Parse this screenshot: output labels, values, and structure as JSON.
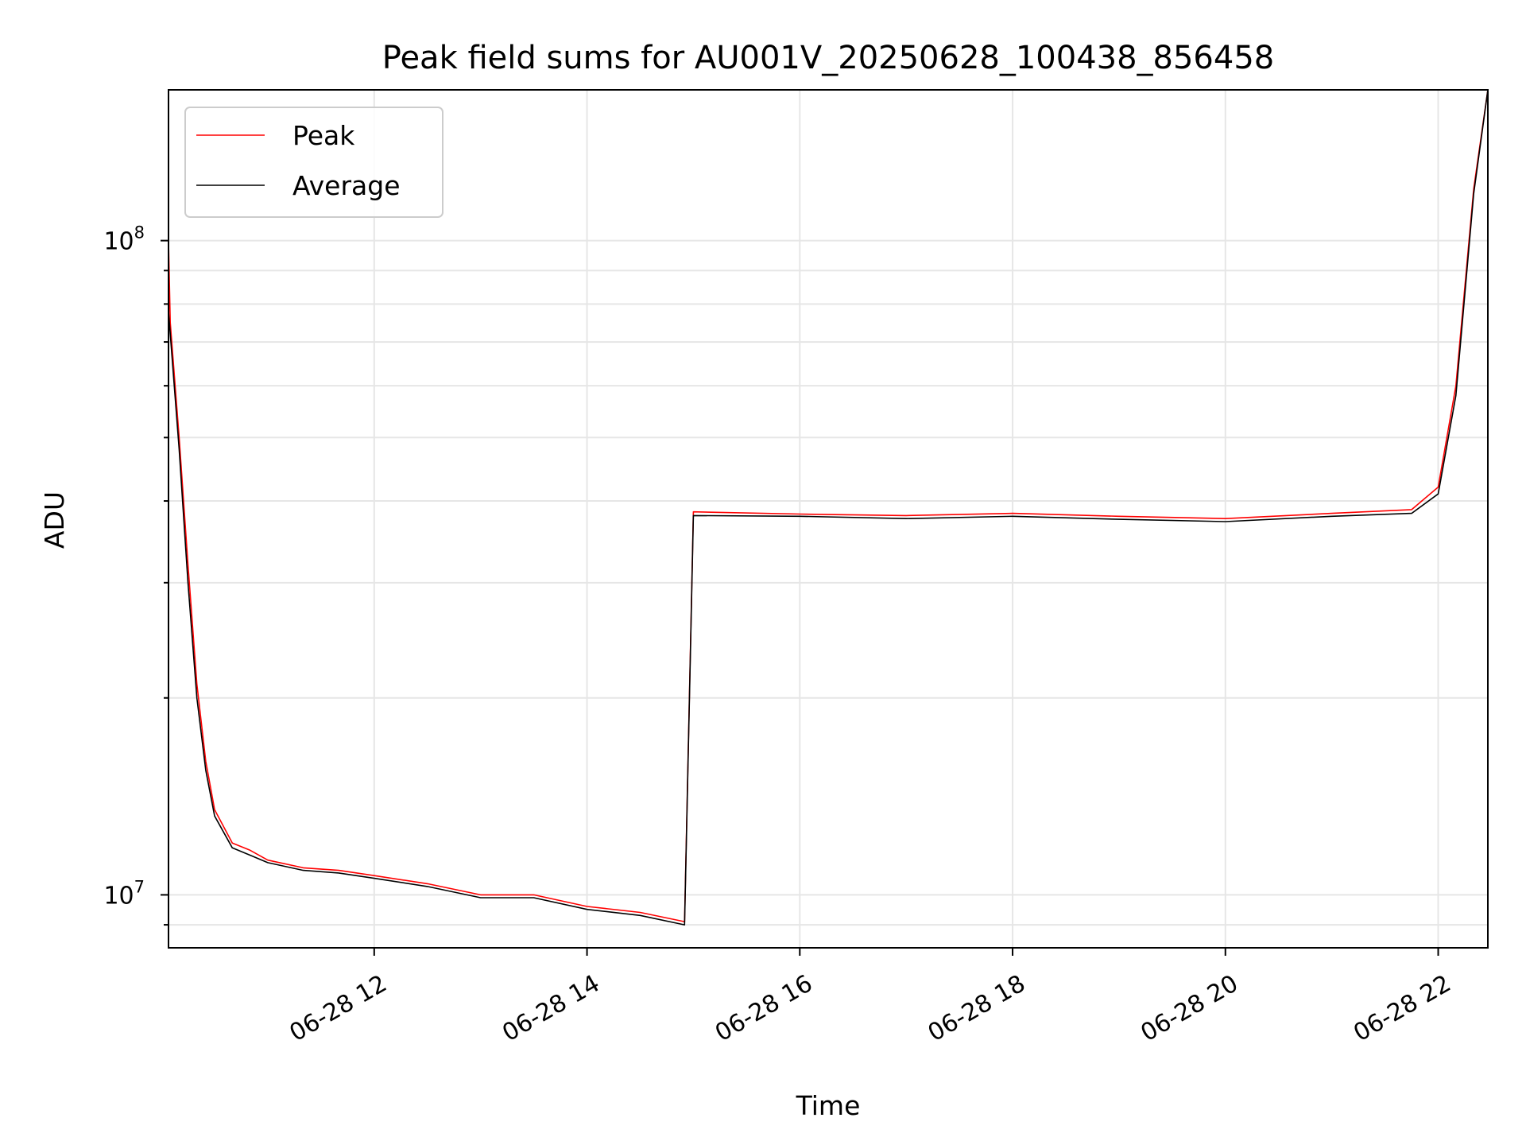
{
  "chart_data": {
    "type": "line",
    "title": "Peak field sums for AU001V_20250628_100438_856458",
    "xlabel": "Time",
    "ylabel": "ADU",
    "y_scale": "log",
    "xlim": [
      "2025-06-28 10:04",
      "2025-06-28 22:28"
    ],
    "ylim": [
      8300000,
      170000000
    ],
    "x_ticks": [
      "06-28 12",
      "06-28 14",
      "06-28 16",
      "06-28 18",
      "06-28 20",
      "06-28 22"
    ],
    "x_tick_rotation_deg": 30,
    "y_ticks": [
      "10^8",
      "10^7"
    ],
    "grid": true,
    "legend": {
      "placement": "top-left",
      "entries": [
        "Peak",
        "Average"
      ]
    },
    "series": [
      {
        "name": "Peak",
        "color": "#ff0000",
        "points": [
          [
            "2025-06-28 10:04",
            100000000
          ],
          [
            "2025-06-28 10:05",
            75000000
          ],
          [
            "2025-06-28 10:10",
            50000000
          ],
          [
            "2025-06-28 10:15",
            32000000
          ],
          [
            "2025-06-28 10:20",
            21000000
          ],
          [
            "2025-06-28 10:25",
            16000000
          ],
          [
            "2025-06-28 10:30",
            13500000
          ],
          [
            "2025-06-28 10:40",
            12000000
          ],
          [
            "2025-06-28 10:50",
            11700000
          ],
          [
            "2025-06-28 11:00",
            11300000
          ],
          [
            "2025-06-28 11:20",
            11000000
          ],
          [
            "2025-06-28 11:40",
            10900000
          ],
          [
            "2025-06-28 12:00",
            10700000
          ],
          [
            "2025-06-28 12:30",
            10400000
          ],
          [
            "2025-06-28 13:00",
            10000000
          ],
          [
            "2025-06-28 13:30",
            10000000
          ],
          [
            "2025-06-28 14:00",
            9600000
          ],
          [
            "2025-06-28 14:30",
            9400000
          ],
          [
            "2025-06-28 14:55",
            9100000
          ],
          [
            "2025-06-28 15:00",
            38500000
          ],
          [
            "2025-06-28 16:00",
            38200000
          ],
          [
            "2025-06-28 17:00",
            38000000
          ],
          [
            "2025-06-28 18:00",
            38300000
          ],
          [
            "2025-06-28 19:00",
            37900000
          ],
          [
            "2025-06-28 20:00",
            37600000
          ],
          [
            "2025-06-28 21:00",
            38300000
          ],
          [
            "2025-06-28 21:45",
            38800000
          ],
          [
            "2025-06-28 22:00",
            42000000
          ],
          [
            "2025-06-28 22:10",
            60000000
          ],
          [
            "2025-06-28 22:20",
            120000000
          ],
          [
            "2025-06-28 22:28",
            170000000
          ]
        ]
      },
      {
        "name": "Average",
        "color": "#000000",
        "points": [
          [
            "2025-06-28 10:04",
            78000000
          ],
          [
            "2025-06-28 10:10",
            48000000
          ],
          [
            "2025-06-28 10:15",
            30000000
          ],
          [
            "2025-06-28 10:20",
            20000000
          ],
          [
            "2025-06-28 10:25",
            15500000
          ],
          [
            "2025-06-28 10:30",
            13200000
          ],
          [
            "2025-06-28 10:40",
            11800000
          ],
          [
            "2025-06-28 10:50",
            11500000
          ],
          [
            "2025-06-28 11:00",
            11200000
          ],
          [
            "2025-06-28 11:20",
            10900000
          ],
          [
            "2025-06-28 11:40",
            10800000
          ],
          [
            "2025-06-28 12:00",
            10600000
          ],
          [
            "2025-06-28 12:30",
            10300000
          ],
          [
            "2025-06-28 13:00",
            9900000
          ],
          [
            "2025-06-28 13:30",
            9900000
          ],
          [
            "2025-06-28 14:00",
            9500000
          ],
          [
            "2025-06-28 14:30",
            9300000
          ],
          [
            "2025-06-28 14:55",
            9000000
          ],
          [
            "2025-06-28 15:00",
            38000000
          ],
          [
            "2025-06-28 16:00",
            37900000
          ],
          [
            "2025-06-28 17:00",
            37600000
          ],
          [
            "2025-06-28 18:00",
            37900000
          ],
          [
            "2025-06-28 19:00",
            37500000
          ],
          [
            "2025-06-28 20:00",
            37200000
          ],
          [
            "2025-06-28 21:00",
            37900000
          ],
          [
            "2025-06-28 21:45",
            38300000
          ],
          [
            "2025-06-28 22:00",
            41000000
          ],
          [
            "2025-06-28 22:10",
            58000000
          ],
          [
            "2025-06-28 22:20",
            118000000
          ],
          [
            "2025-06-28 22:28",
            170000000
          ]
        ]
      }
    ]
  }
}
